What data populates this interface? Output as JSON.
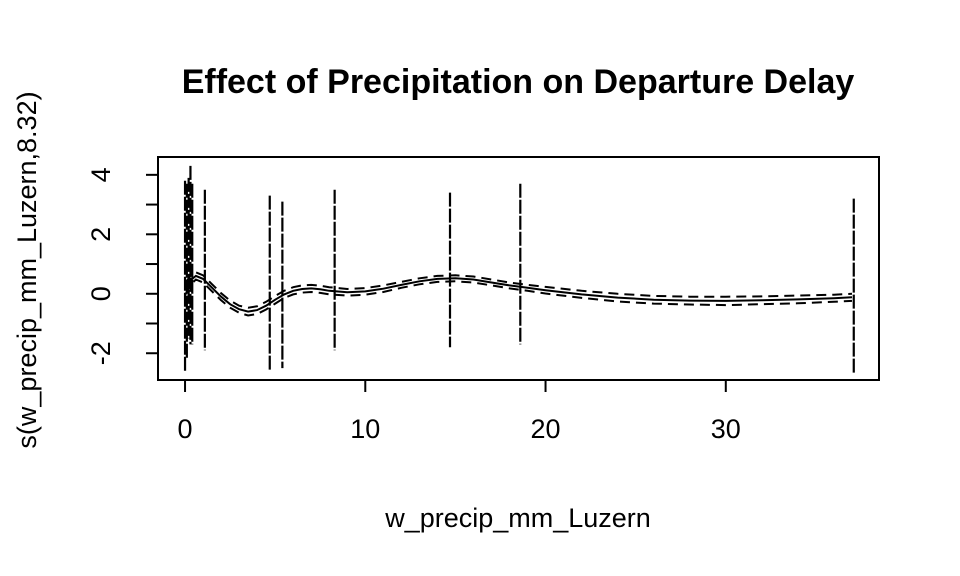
{
  "chart_data": {
    "type": "line",
    "title": "Effect of Precipitation on Departure Delay",
    "xlabel": "w_precip_mm_Luzern",
    "ylabel": "s(w_precip_mm_Luzern,8.32)",
    "xlim": [
      -1.5,
      38.5
    ],
    "ylim": [
      -2.9,
      4.6
    ],
    "x_ticks": [
      0,
      10,
      20,
      30
    ],
    "x_tick_labels": [
      "0",
      "10",
      "20",
      "30"
    ],
    "y_ticks": [
      -2,
      0,
      2,
      4
    ],
    "y_tick_labels": [
      "-2",
      "0",
      "2",
      "4"
    ],
    "y_minor_ticks": [
      -1,
      1,
      3
    ],
    "grid": false,
    "legend": "none",
    "series": [
      {
        "style": "solid",
        "x": [
          0,
          0.3,
          0.6,
          1,
          1.5,
          2,
          2.5,
          3,
          3.5,
          4,
          4.5,
          5,
          5.5,
          6,
          6.5,
          7,
          7.5,
          8,
          9,
          10,
          11,
          12,
          13,
          14,
          15,
          16,
          17,
          18,
          19,
          20,
          22,
          24,
          26,
          28,
          30,
          32,
          34,
          36,
          37
        ],
        "y": [
          0.15,
          0.45,
          0.6,
          0.5,
          0.2,
          -0.1,
          -0.35,
          -0.52,
          -0.6,
          -0.55,
          -0.4,
          -0.2,
          -0.02,
          0.1,
          0.16,
          0.18,
          0.15,
          0.1,
          0.05,
          0.08,
          0.17,
          0.3,
          0.42,
          0.5,
          0.52,
          0.48,
          0.38,
          0.28,
          0.2,
          0.12,
          -0.02,
          -0.13,
          -0.2,
          -0.23,
          -0.24,
          -0.22,
          -0.19,
          -0.15,
          -0.12
        ]
      },
      {
        "style": "dashed",
        "x": [
          0,
          0.3,
          0.6,
          1,
          1.5,
          2,
          2.5,
          3,
          3.5,
          4,
          4.5,
          5,
          5.5,
          6,
          6.5,
          7,
          7.5,
          8,
          9,
          10,
          11,
          12,
          13,
          14,
          15,
          16,
          17,
          18,
          19,
          20,
          22,
          24,
          26,
          28,
          30,
          32,
          34,
          36,
          37
        ],
        "y": [
          0.35,
          0.6,
          0.72,
          0.62,
          0.32,
          0.02,
          -0.23,
          -0.4,
          -0.47,
          -0.42,
          -0.27,
          -0.07,
          0.1,
          0.22,
          0.28,
          0.3,
          0.27,
          0.22,
          0.16,
          0.19,
          0.28,
          0.4,
          0.52,
          0.6,
          0.62,
          0.58,
          0.48,
          0.38,
          0.3,
          0.23,
          0.1,
          0.0,
          -0.07,
          -0.1,
          -0.1,
          -0.09,
          -0.06,
          -0.03,
          0.0
        ]
      },
      {
        "style": "dashed",
        "x": [
          0,
          0.3,
          0.6,
          1,
          1.5,
          2,
          2.5,
          3,
          3.5,
          4,
          4.5,
          5,
          5.5,
          6,
          6.5,
          7,
          7.5,
          8,
          9,
          10,
          11,
          12,
          13,
          14,
          15,
          16,
          17,
          18,
          19,
          20,
          22,
          24,
          26,
          28,
          30,
          32,
          34,
          36,
          37
        ],
        "y": [
          -0.05,
          0.3,
          0.48,
          0.38,
          0.08,
          -0.22,
          -0.47,
          -0.64,
          -0.73,
          -0.68,
          -0.53,
          -0.33,
          -0.14,
          -0.02,
          0.04,
          0.06,
          0.03,
          -0.02,
          -0.06,
          -0.03,
          0.06,
          0.2,
          0.32,
          0.4,
          0.42,
          0.38,
          0.28,
          0.18,
          0.1,
          0.01,
          -0.14,
          -0.26,
          -0.33,
          -0.36,
          -0.38,
          -0.35,
          -0.32,
          -0.27,
          -0.24
        ]
      }
    ],
    "partial_residuals": [
      {
        "x": 0.0,
        "ymin": -2.6,
        "ymax": 3.8
      },
      {
        "x": 0.1,
        "ymin": -2.2,
        "ymax": 3.7
      },
      {
        "x": 0.2,
        "ymin": -1.5,
        "ymax": 3.9
      },
      {
        "x": 0.3,
        "ymin": -1.7,
        "ymax": 4.3
      },
      {
        "x": 0.4,
        "ymin": -1.7,
        "ymax": 3.7
      },
      {
        "x": 1.1,
        "ymin": -1.9,
        "ymax": 3.5
      },
      {
        "x": 4.7,
        "ymin": -2.6,
        "ymax": 3.3
      },
      {
        "x": 5.4,
        "ymin": -2.5,
        "ymax": 3.1
      },
      {
        "x": 8.3,
        "ymin": -1.9,
        "ymax": 3.5
      },
      {
        "x": 14.7,
        "ymin": -1.8,
        "ymax": 3.4
      },
      {
        "x": 18.6,
        "ymin": -1.7,
        "ymax": 3.7
      },
      {
        "x": 37.1,
        "ymin": -2.7,
        "ymax": 3.2
      }
    ]
  }
}
